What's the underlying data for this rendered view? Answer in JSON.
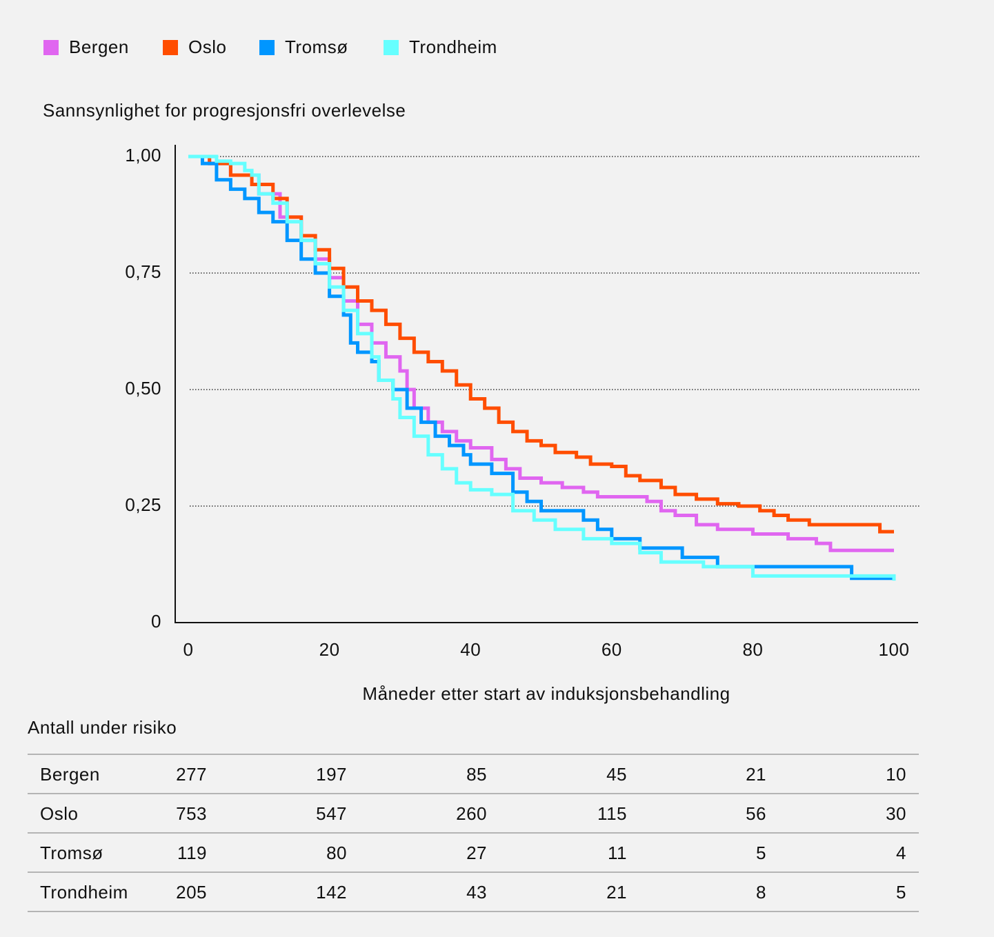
{
  "chart_data": {
    "type": "step",
    "y_label": "Sannsynlighet for progresjonsfri overlevelse",
    "x_label": "Måneder etter start av induksjonsbehandling",
    "xlim": [
      0,
      100
    ],
    "xticks": [
      0,
      20,
      40,
      60,
      80,
      100
    ],
    "ylim": [
      0,
      1
    ],
    "yticks": [
      {
        "value": 0,
        "label": "0"
      },
      {
        "value": 0.25,
        "label": "0,25"
      },
      {
        "value": 0.5,
        "label": "0,50"
      },
      {
        "value": 0.75,
        "label": "0,75"
      },
      {
        "value": 1,
        "label": "1,00"
      }
    ],
    "grid": true,
    "legend": "top-left",
    "series": [
      {
        "name": "Bergen",
        "color": "#e066f0",
        "x": [
          0,
          3,
          6,
          10,
          13,
          16,
          18,
          20,
          22,
          24,
          26,
          28,
          30,
          31,
          32,
          34,
          36,
          38,
          40,
          43,
          45,
          47,
          50,
          53,
          56,
          58,
          65,
          67,
          69,
          72,
          75,
          80,
          85,
          89,
          91,
          100
        ],
        "values": [
          1,
          0.985,
          0.96,
          0.92,
          0.87,
          0.82,
          0.78,
          0.74,
          0.69,
          0.64,
          0.6,
          0.57,
          0.54,
          0.5,
          0.46,
          0.43,
          0.41,
          0.39,
          0.375,
          0.35,
          0.33,
          0.31,
          0.3,
          0.29,
          0.28,
          0.27,
          0.26,
          0.24,
          0.23,
          0.21,
          0.2,
          0.19,
          0.18,
          0.17,
          0.155,
          0.155
        ]
      },
      {
        "name": "Oslo",
        "color": "#ff4d00",
        "x": [
          0,
          3,
          6,
          9,
          12,
          14,
          16,
          18,
          20,
          22,
          24,
          26,
          28,
          30,
          32,
          34,
          36,
          38,
          40,
          42,
          44,
          46,
          48,
          50,
          52,
          55,
          57,
          60,
          62,
          64,
          67,
          69,
          72,
          75,
          78,
          81,
          83,
          85,
          88,
          98,
          100
        ],
        "values": [
          1,
          0.985,
          0.96,
          0.94,
          0.91,
          0.87,
          0.83,
          0.8,
          0.76,
          0.72,
          0.69,
          0.67,
          0.64,
          0.61,
          0.58,
          0.56,
          0.54,
          0.51,
          0.48,
          0.46,
          0.43,
          0.41,
          0.39,
          0.38,
          0.365,
          0.355,
          0.34,
          0.335,
          0.315,
          0.305,
          0.29,
          0.275,
          0.265,
          0.255,
          0.25,
          0.24,
          0.23,
          0.22,
          0.21,
          0.195,
          0.195
        ]
      },
      {
        "name": "Tromsø",
        "color": "#0096ff",
        "x": [
          0,
          2,
          4,
          6,
          8,
          10,
          12,
          14,
          16,
          18,
          20,
          22,
          23,
          24,
          26,
          27,
          29,
          31,
          33,
          35,
          37,
          39,
          40,
          43,
          46,
          48,
          50,
          56,
          58,
          60,
          64,
          70,
          75,
          94,
          100
        ],
        "values": [
          1,
          0.985,
          0.95,
          0.93,
          0.91,
          0.88,
          0.86,
          0.82,
          0.78,
          0.75,
          0.7,
          0.66,
          0.6,
          0.58,
          0.56,
          0.52,
          0.5,
          0.46,
          0.43,
          0.4,
          0.38,
          0.36,
          0.34,
          0.32,
          0.28,
          0.26,
          0.24,
          0.22,
          0.2,
          0.18,
          0.16,
          0.14,
          0.12,
          0.095,
          0.095
        ]
      },
      {
        "name": "Trondheim",
        "color": "#66ffff",
        "x": [
          0,
          4,
          6,
          8,
          9,
          10,
          12,
          14,
          16,
          18,
          20,
          22,
          24,
          26,
          27,
          29,
          30,
          32,
          34,
          36,
          38,
          40,
          43,
          46,
          49,
          52,
          56,
          60,
          64,
          67,
          73,
          80,
          100
        ],
        "values": [
          1,
          0.99,
          0.985,
          0.97,
          0.96,
          0.92,
          0.9,
          0.86,
          0.82,
          0.77,
          0.72,
          0.67,
          0.62,
          0.57,
          0.52,
          0.48,
          0.44,
          0.4,
          0.36,
          0.33,
          0.3,
          0.285,
          0.275,
          0.24,
          0.22,
          0.2,
          0.18,
          0.17,
          0.15,
          0.13,
          0.12,
          0.1,
          0.09
        ]
      }
    ]
  },
  "risk_table": {
    "title": "Antall under risiko",
    "rows": [
      {
        "name": "Bergen",
        "values": [
          277,
          197,
          85,
          45,
          21,
          10
        ]
      },
      {
        "name": "Oslo",
        "values": [
          753,
          547,
          260,
          115,
          56,
          30
        ]
      },
      {
        "name": "Tromsø",
        "values": [
          119,
          80,
          27,
          11,
          5,
          4
        ]
      },
      {
        "name": "Trondheim",
        "values": [
          205,
          142,
          43,
          21,
          8,
          5
        ]
      }
    ]
  }
}
